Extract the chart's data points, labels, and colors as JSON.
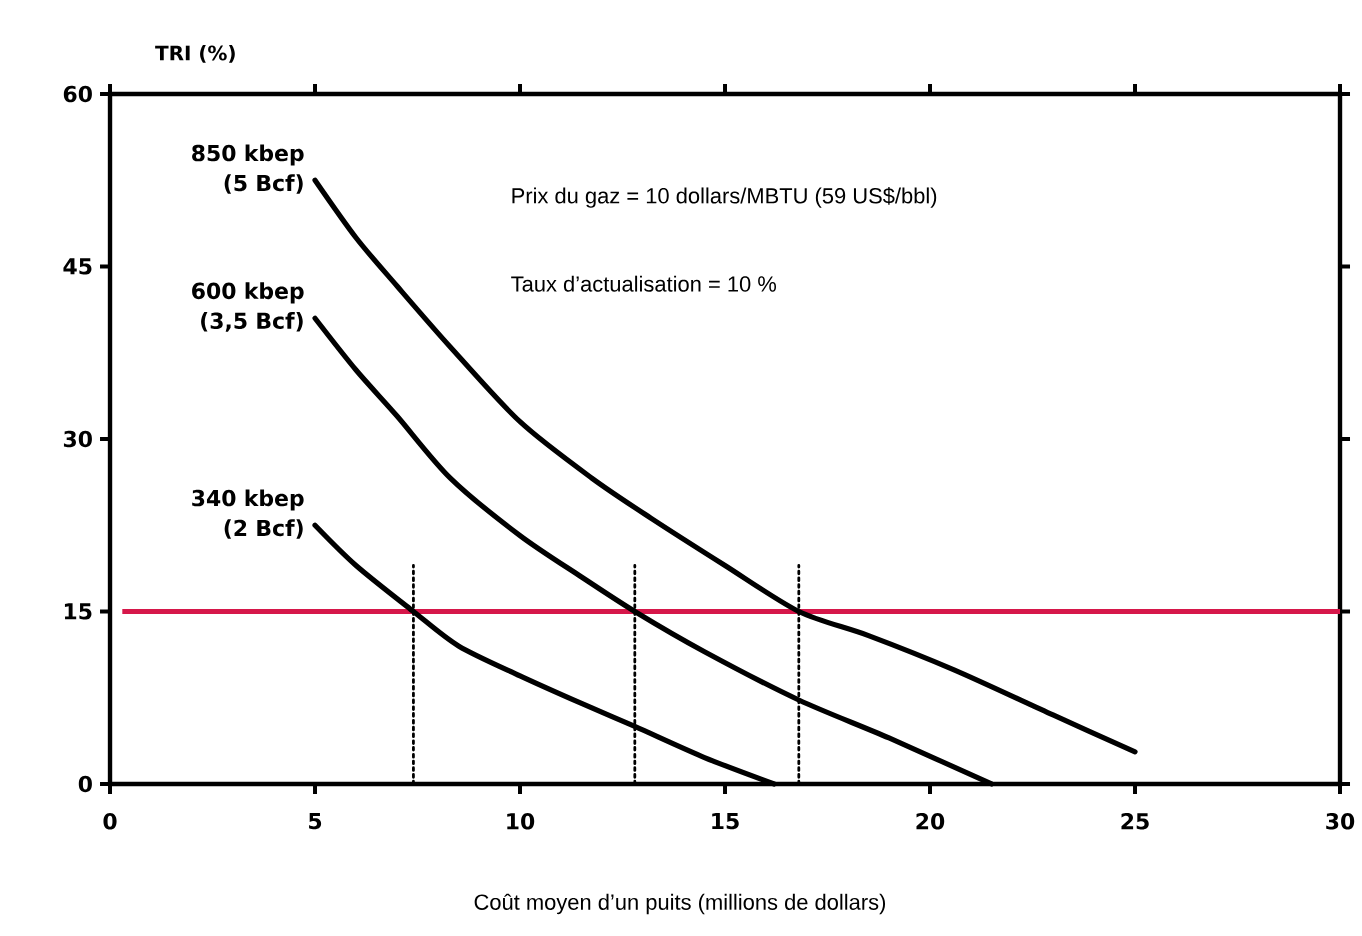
{
  "chart_data": {
    "type": "line",
    "xlabel": "Coût moyen d’un puits (millions de dollars)",
    "ylabel": "TRI (%)",
    "annotations": [
      "Prix du gaz = 10 dollars/MBTU (59 US$/bbl)",
      "Taux d’actualisation = 10 %"
    ],
    "xlim": [
      0,
      30
    ],
    "ylim": [
      0,
      60
    ],
    "xticks": [
      0,
      5,
      10,
      15,
      20,
      25,
      30
    ],
    "yticks": [
      0,
      15,
      30,
      45,
      60
    ],
    "line_style": "solid",
    "series": [
      {
        "name": "850 kbep (5 Bcf)",
        "color": "#000000",
        "x": [
          5,
          6,
          7,
          8.3,
          10,
          11.75,
          13.2,
          15,
          16.8,
          18.5,
          20.6,
          23,
          25
        ],
        "values": [
          52.5,
          47.5,
          43.3,
          38,
          31.5,
          26.6,
          23.1,
          19,
          15,
          12.9,
          9.9,
          6,
          2.8
        ]
      },
      {
        "name": "600 kbep (3,5 Bcf)",
        "color": "#000000",
        "x": [
          5,
          6,
          7,
          8.3,
          10,
          11.5,
          12.8,
          14.5,
          16.8,
          19,
          21.5
        ],
        "values": [
          40.5,
          36,
          32,
          26.6,
          21.6,
          18,
          15,
          11.5,
          7.3,
          4,
          0
        ]
      },
      {
        "name": "340 kbep (2 Bcf)",
        "color": "#000000",
        "x": [
          5,
          6,
          7.4,
          8.5,
          10,
          11.5,
          12.8,
          14.5,
          16.2
        ],
        "values": [
          22.5,
          19,
          15,
          12,
          9.4,
          7,
          5,
          2.3,
          0
        ]
      },
      {
        "color": "#000000",
        "line_style": "dotted",
        "x": [
          7.4,
          7.4
        ],
        "values": [
          0,
          19
        ]
      },
      {
        "color": "#000000",
        "line_style": "dotted",
        "x": [
          12.8,
          12.8
        ],
        "values": [
          0,
          19
        ]
      },
      {
        "color": "#000000",
        "line_style": "dotted",
        "x": [
          16.8,
          16.8
        ],
        "values": [
          0,
          19
        ]
      }
    ],
    "ref_lines": [
      {
        "axis": "y",
        "value": 15,
        "color": "#d6174a"
      }
    ]
  }
}
